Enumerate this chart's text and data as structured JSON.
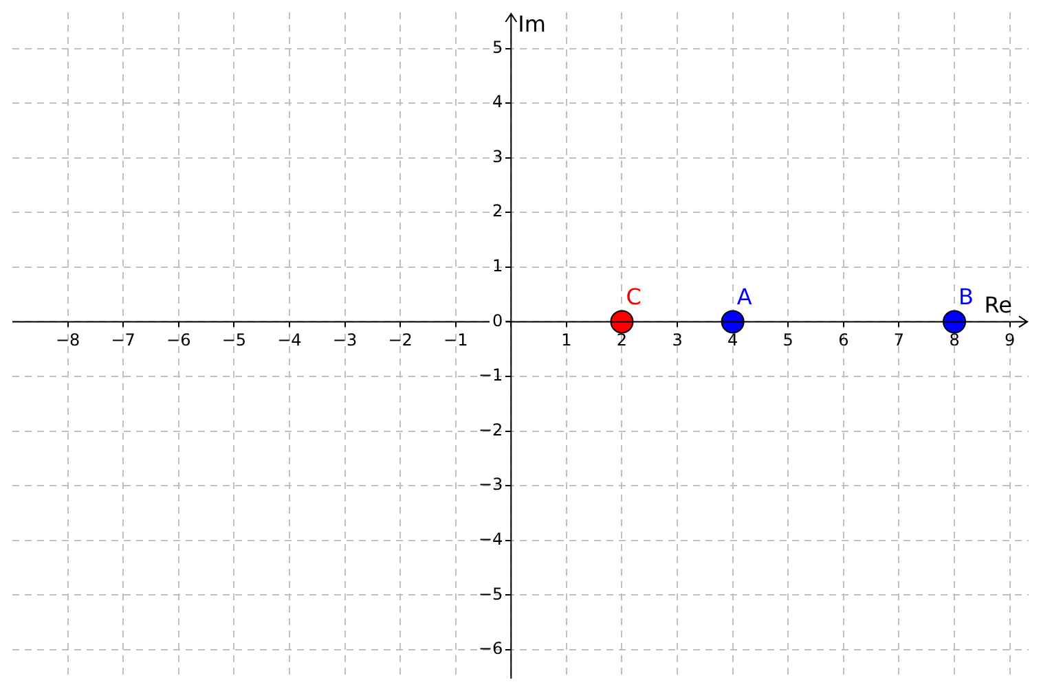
{
  "chart_data": {
    "type": "scatter",
    "xlabel": "Re",
    "ylabel": "Im",
    "xlim": [
      -9.0,
      9.34
    ],
    "ylim": [
      -6.53,
      5.66
    ],
    "xticks": [
      {
        "value": -8,
        "label": "−8"
      },
      {
        "value": -7,
        "label": "−7"
      },
      {
        "value": -6,
        "label": "−6"
      },
      {
        "value": -5,
        "label": "−5"
      },
      {
        "value": -4,
        "label": "−4"
      },
      {
        "value": -3,
        "label": "−3"
      },
      {
        "value": -2,
        "label": "−2"
      },
      {
        "value": -1,
        "label": "−1"
      },
      {
        "value": 0,
        "label": null
      },
      1,
      2,
      3,
      4,
      5,
      6,
      7,
      8,
      9
    ],
    "yticks": [
      {
        "value": -6,
        "label": "−6"
      },
      {
        "value": -5,
        "label": "−5"
      },
      {
        "value": -4,
        "label": "−4"
      },
      {
        "value": -3,
        "label": "−3"
      },
      {
        "value": -2,
        "label": "−2"
      },
      {
        "value": -1,
        "label": "−1"
      },
      0,
      1,
      2,
      3,
      4,
      5
    ],
    "series": [
      {
        "name": "C",
        "color": "#ff0000",
        "x": [
          2
        ],
        "values": [
          0
        ]
      },
      {
        "name": "A",
        "color": "#0000ff",
        "x": [
          4
        ],
        "values": [
          0
        ]
      },
      {
        "name": "B",
        "color": "#0000ff",
        "x": [
          8
        ],
        "values": [
          0
        ]
      }
    ],
    "grid": true,
    "marker": "circle",
    "legend": false
  }
}
